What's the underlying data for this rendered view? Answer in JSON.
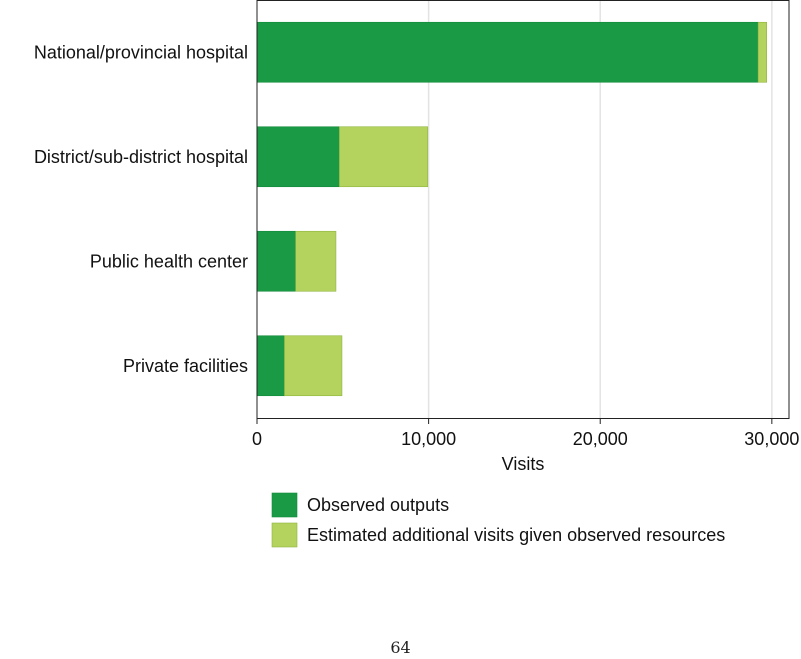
{
  "chart_data": {
    "type": "bar",
    "orientation": "horizontal",
    "stacked": true,
    "categories": [
      "National/provincial hospital",
      "District/sub-district hospital",
      "Public health center",
      "Private facilities"
    ],
    "series": [
      {
        "name": "Observed outputs",
        "color": "#1a9a45",
        "values": [
          29200,
          4800,
          2250,
          1600
        ]
      },
      {
        "name": "Estimated additional visits given observed resources",
        "color": "#b3d25e",
        "values": [
          500,
          5150,
          2350,
          3350
        ]
      }
    ],
    "xlabel": "Visits",
    "xlim": [
      0,
      31000
    ],
    "xticks": [
      0,
      10000,
      20000,
      30000
    ],
    "xtick_labels": [
      "0",
      "10,000",
      "20,000",
      "30,000"
    ],
    "grid": "vertical",
    "legend_position": "bottom"
  },
  "page_number": "64"
}
